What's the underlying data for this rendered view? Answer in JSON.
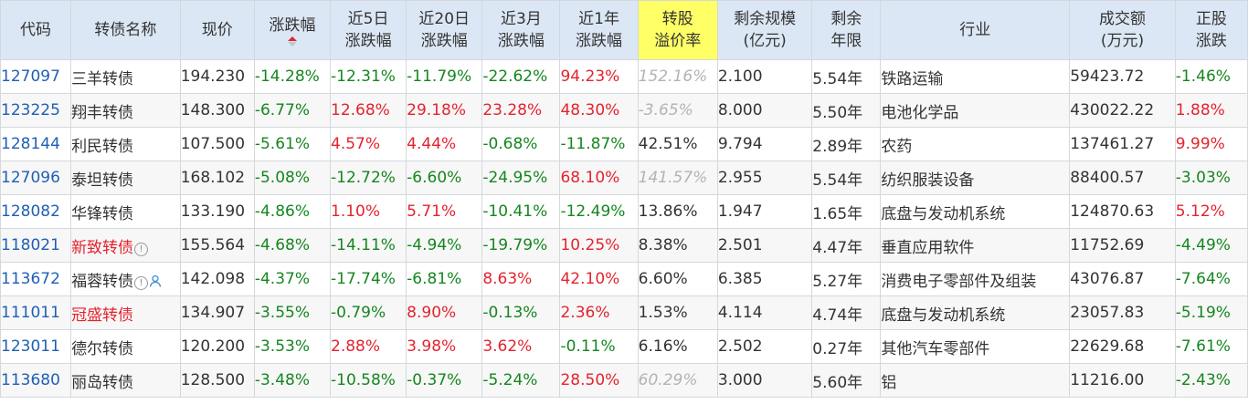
{
  "headers": {
    "code": "代码",
    "name": "转债名称",
    "price": "现价",
    "change": "涨跌幅",
    "chg5d": [
      "近5日",
      "涨跌幅"
    ],
    "chg20d": [
      "近20日",
      "涨跌幅"
    ],
    "chg3m": [
      "近3月",
      "涨跌幅"
    ],
    "chg1y": [
      "近1年",
      "涨跌幅"
    ],
    "premium": [
      "转股",
      "溢价率"
    ],
    "remaining_scale": [
      "剩余规模",
      "(亿元)"
    ],
    "remaining_years": [
      "剩余",
      "年限"
    ],
    "industry": "行业",
    "volume": [
      "成交额",
      "(万元)"
    ],
    "stock_change": [
      "正股",
      "涨跌"
    ]
  },
  "sort": {
    "column": "change",
    "direction": "descending-active-up-arrow"
  },
  "colors": {
    "up": "#e4232e",
    "down": "#15861f",
    "link": "#1f5fb5",
    "muted": "#b3b3b3",
    "header_bg": "#dce7f5",
    "highlight": "#ffff66"
  },
  "rows": [
    {
      "code": "127097",
      "name": "三羊转债",
      "name_red": false,
      "info": false,
      "person": false,
      "price": "194.230",
      "change": "-14.28%",
      "chg5d": "-12.31%",
      "chg20d": "-11.79%",
      "chg3m": "-22.62%",
      "chg1y": "94.23%",
      "premium": "152.16%",
      "premium_muted": true,
      "scale": "2.100",
      "years": "5.54年",
      "industry": "铁路运输",
      "volume": "59423.72",
      "stock_change": "-1.46%"
    },
    {
      "code": "123225",
      "name": "翔丰转债",
      "name_red": false,
      "info": false,
      "person": false,
      "price": "148.300",
      "change": "-6.77%",
      "chg5d": "12.68%",
      "chg20d": "29.18%",
      "chg3m": "23.28%",
      "chg1y": "48.30%",
      "premium": "-3.65%",
      "premium_muted": true,
      "scale": "8.000",
      "years": "5.50年",
      "industry": "电池化学品",
      "volume": "430022.22",
      "stock_change": "1.88%"
    },
    {
      "code": "128144",
      "name": "利民转债",
      "name_red": false,
      "info": false,
      "person": false,
      "price": "107.500",
      "change": "-5.61%",
      "chg5d": "4.57%",
      "chg20d": "4.44%",
      "chg3m": "-0.68%",
      "chg1y": "-11.87%",
      "premium": "42.51%",
      "premium_muted": false,
      "scale": "9.794",
      "years": "2.89年",
      "industry": "农药",
      "volume": "137461.27",
      "stock_change": "9.99%"
    },
    {
      "code": "127096",
      "name": "泰坦转债",
      "name_red": false,
      "info": false,
      "person": false,
      "price": "168.102",
      "change": "-5.08%",
      "chg5d": "-12.72%",
      "chg20d": "-6.60%",
      "chg3m": "-24.95%",
      "chg1y": "68.10%",
      "premium": "141.57%",
      "premium_muted": true,
      "scale": "2.955",
      "years": "5.54年",
      "industry": "纺织服装设备",
      "volume": "88400.57",
      "stock_change": "-3.03%"
    },
    {
      "code": "128082",
      "name": "华锋转债",
      "name_red": false,
      "info": false,
      "person": false,
      "price": "133.190",
      "change": "-4.86%",
      "chg5d": "1.10%",
      "chg20d": "5.71%",
      "chg3m": "-10.41%",
      "chg1y": "-12.49%",
      "premium": "13.86%",
      "premium_muted": false,
      "scale": "1.947",
      "years": "1.65年",
      "industry": "底盘与发动机系统",
      "volume": "124870.63",
      "stock_change": "5.12%"
    },
    {
      "code": "118021",
      "name": "新致转债",
      "name_red": true,
      "info": true,
      "person": false,
      "price": "155.564",
      "change": "-4.68%",
      "chg5d": "-14.11%",
      "chg20d": "-4.94%",
      "chg3m": "-19.79%",
      "chg1y": "10.25%",
      "premium": "8.38%",
      "premium_muted": false,
      "scale": "2.501",
      "years": "4.47年",
      "industry": "垂直应用软件",
      "volume": "11752.69",
      "stock_change": "-4.49%"
    },
    {
      "code": "113672",
      "name": "福蓉转债",
      "name_red": false,
      "info": true,
      "person": true,
      "price": "142.098",
      "change": "-4.37%",
      "chg5d": "-17.74%",
      "chg20d": "-6.81%",
      "chg3m": "8.63%",
      "chg1y": "42.10%",
      "premium": "6.60%",
      "premium_muted": false,
      "scale": "6.385",
      "years": "5.27年",
      "industry": "消费电子零部件及组装",
      "volume": "43076.87",
      "stock_change": "-7.64%"
    },
    {
      "code": "111011",
      "name": "冠盛转债",
      "name_red": true,
      "info": false,
      "person": false,
      "price": "134.907",
      "change": "-3.55%",
      "chg5d": "-0.79%",
      "chg20d": "8.90%",
      "chg3m": "-0.13%",
      "chg1y": "2.36%",
      "premium": "1.53%",
      "premium_muted": false,
      "scale": "4.114",
      "years": "4.74年",
      "industry": "底盘与发动机系统",
      "volume": "23057.83",
      "stock_change": "-5.19%"
    },
    {
      "code": "123011",
      "name": "德尔转债",
      "name_red": false,
      "info": false,
      "person": false,
      "price": "120.200",
      "change": "-3.53%",
      "chg5d": "2.88%",
      "chg20d": "3.98%",
      "chg3m": "3.62%",
      "chg1y": "-0.11%",
      "premium": "6.16%",
      "premium_muted": false,
      "scale": "2.502",
      "years": "0.27年",
      "industry": "其他汽车零部件",
      "volume": "22629.68",
      "stock_change": "-7.61%"
    },
    {
      "code": "113680",
      "name": "丽岛转债",
      "name_red": false,
      "info": false,
      "person": false,
      "price": "128.500",
      "change": "-3.48%",
      "chg5d": "-10.58%",
      "chg20d": "-0.37%",
      "chg3m": "-5.24%",
      "chg1y": "28.50%",
      "premium": "60.29%",
      "premium_muted": true,
      "scale": "3.000",
      "years": "5.60年",
      "industry": "铝",
      "volume": "11216.00",
      "stock_change": "-2.43%"
    }
  ]
}
